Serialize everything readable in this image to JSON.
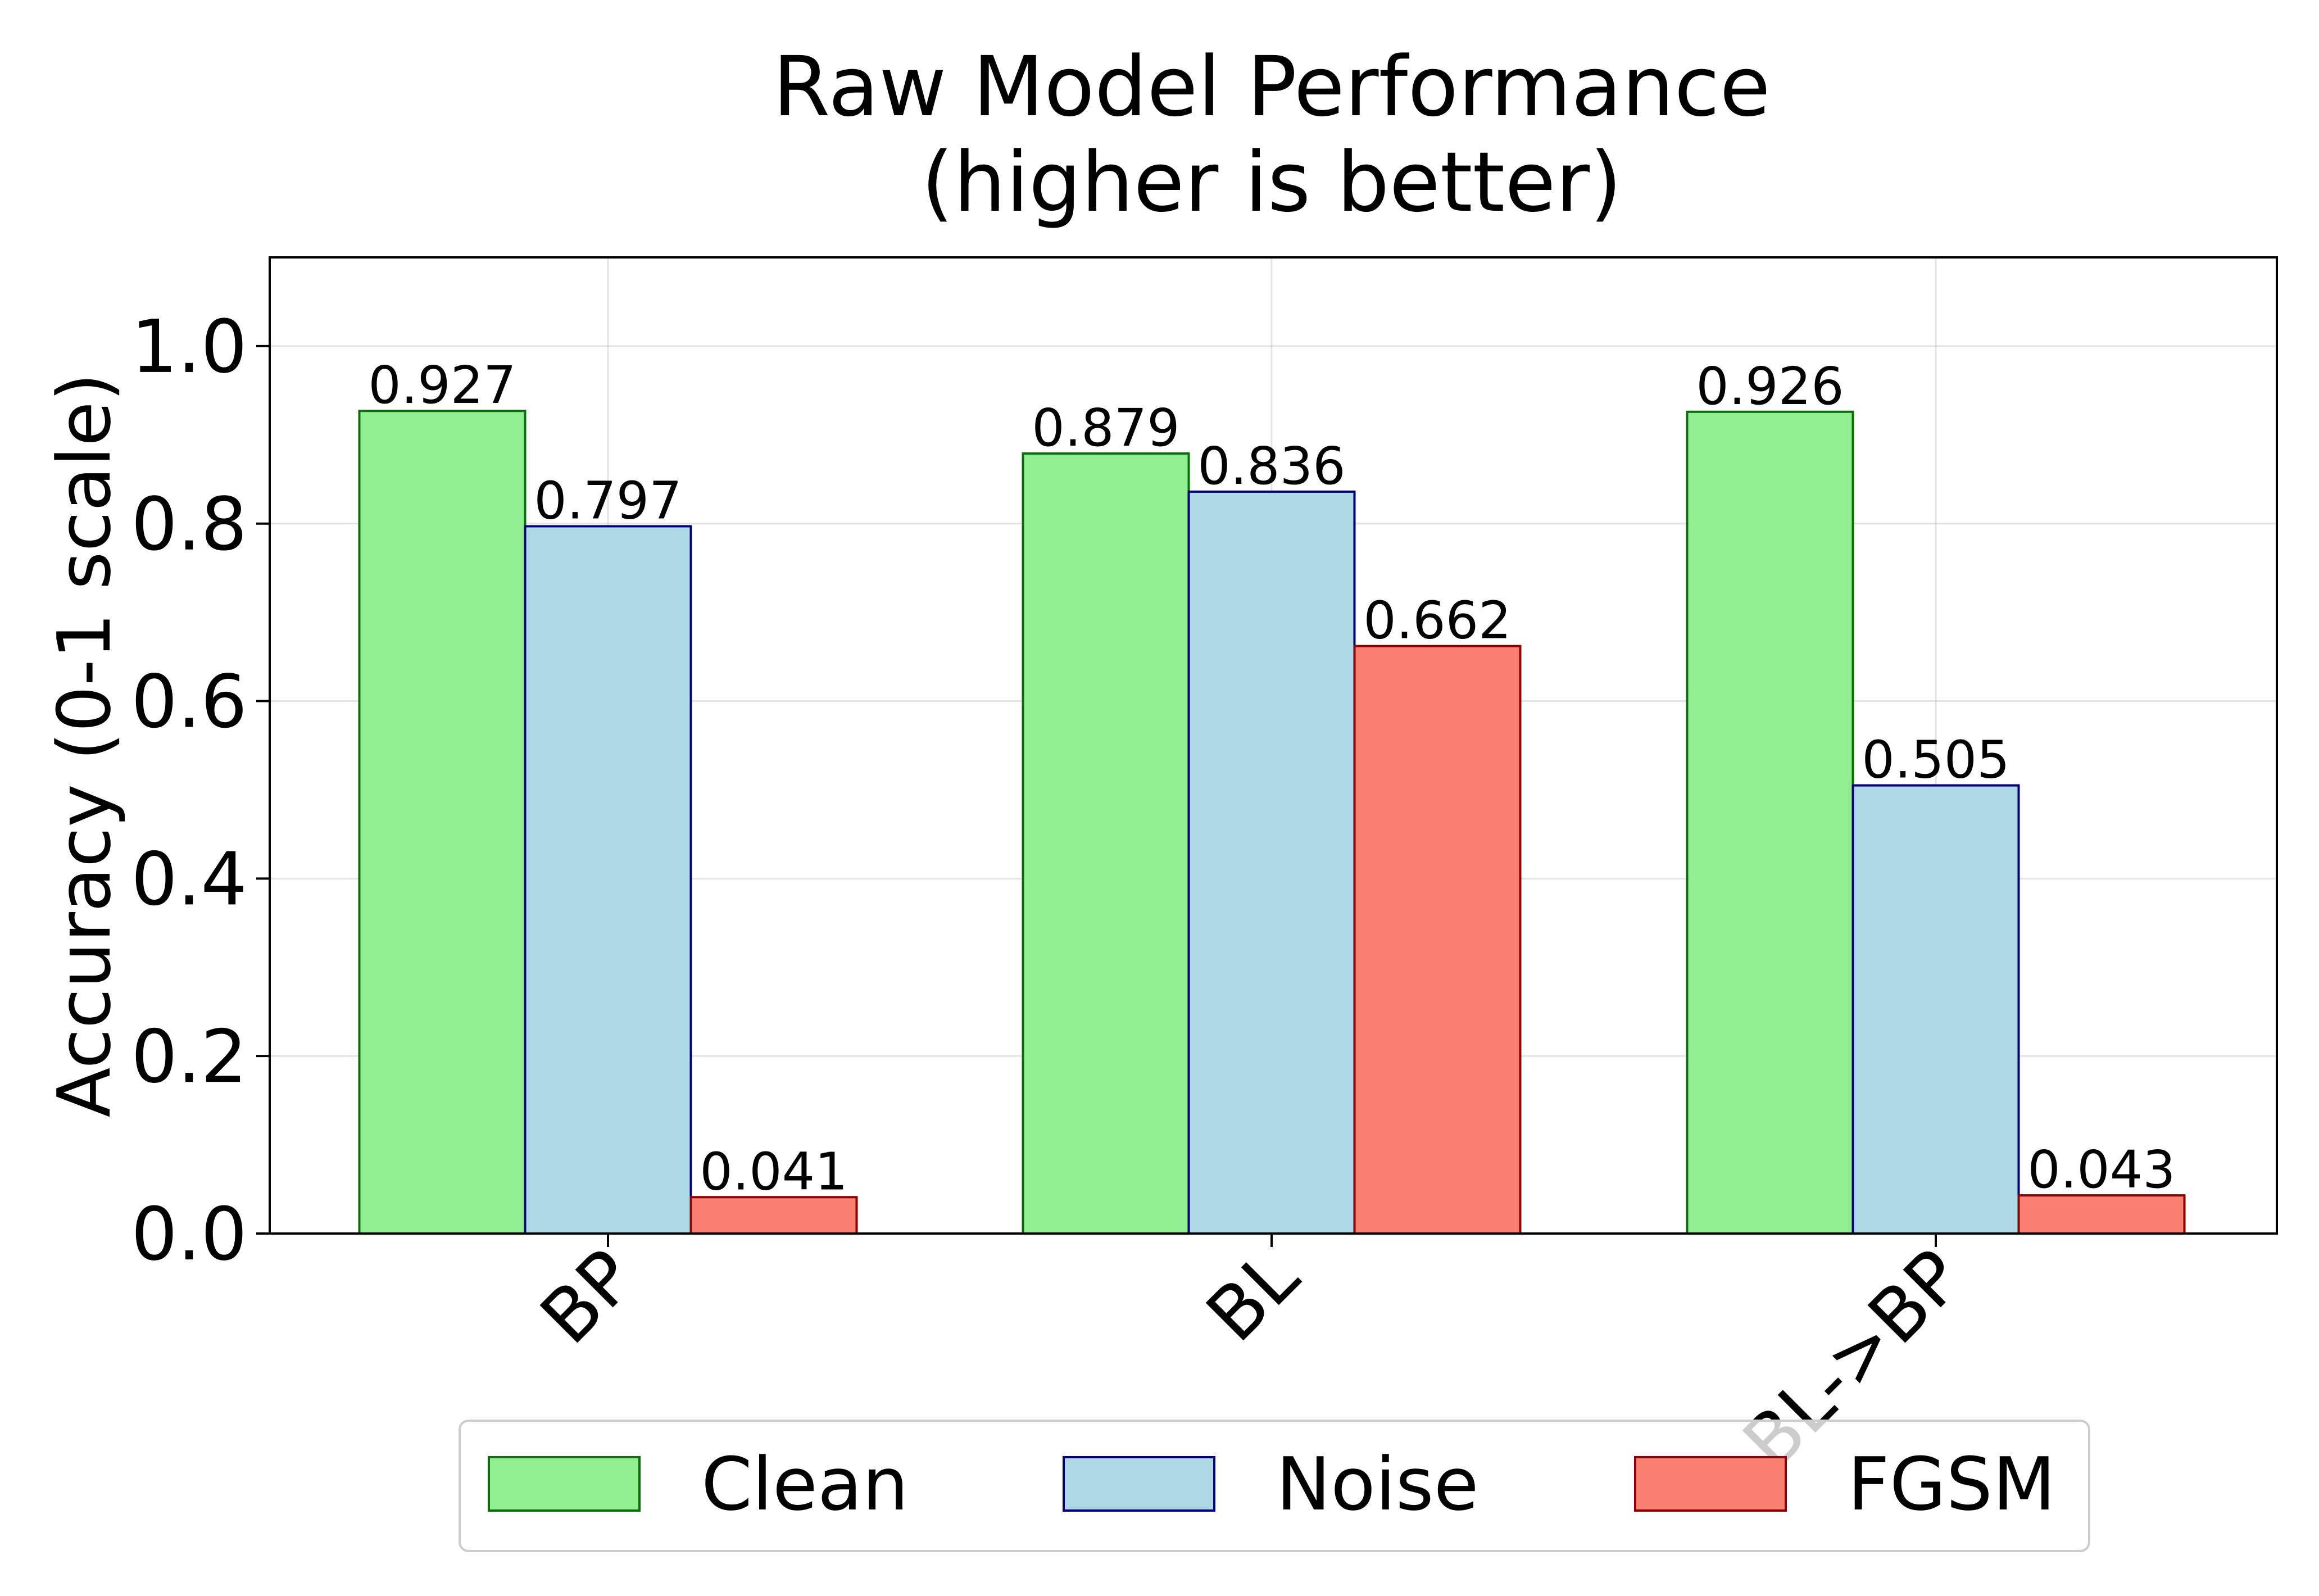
{
  "chart_data": {
    "type": "bar",
    "title": "Raw Model Performance",
    "subtitle": "(higher is better)",
    "xlabel": "",
    "ylabel": "Accuracy (0-1 scale)",
    "categories": [
      "BP",
      "BL",
      "BL->BP"
    ],
    "series": [
      {
        "name": "Clean",
        "values": [
          0.927,
          0.879,
          0.926
        ],
        "labels": [
          "0.927",
          "0.879",
          "0.926"
        ],
        "color": "#90ee90",
        "edge": "#0b6e0b"
      },
      {
        "name": "Noise",
        "values": [
          0.797,
          0.836,
          0.505
        ],
        "labels": [
          "0.797",
          "0.836",
          "0.505"
        ],
        "color": "#add8e6",
        "edge": "#00007a"
      },
      {
        "name": "FGSM",
        "values": [
          0.041,
          0.662,
          0.043
        ],
        "labels": [
          "0.041",
          "0.662",
          "0.043"
        ],
        "color": "#fa8072",
        "edge": "#8b0000"
      }
    ],
    "ylim": [
      0,
      1.1
    ],
    "yticks": [
      0.0,
      0.2,
      0.4,
      0.6,
      0.8,
      1.0
    ],
    "ytick_labels": [
      "0.0",
      "0.2",
      "0.4",
      "0.6",
      "0.8",
      "1.0"
    ],
    "grid": true,
    "legend": "bottom-center"
  }
}
